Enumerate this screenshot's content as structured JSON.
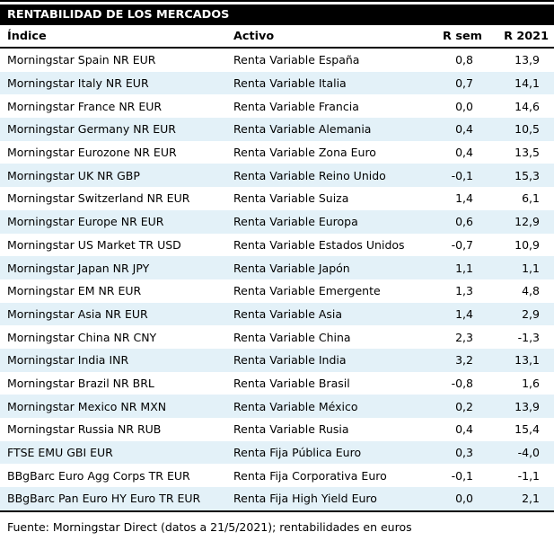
{
  "header": {
    "title": "RENTABILIDAD DE LOS MERCADOS"
  },
  "table": {
    "columns": [
      "Índice",
      "Activo",
      "R sem",
      "R 2021"
    ],
    "rows": [
      [
        "Morningstar Spain NR EUR",
        "Renta Variable España",
        "0,8",
        "13,9"
      ],
      [
        "Morningstar Italy NR EUR",
        "Renta Variable Italia",
        "0,7",
        "14,1"
      ],
      [
        "Morningstar France NR EUR",
        "Renta Variable Francia",
        "0,0",
        "14,6"
      ],
      [
        "Morningstar Germany NR EUR",
        "Renta Variable Alemania",
        "0,4",
        "10,5"
      ],
      [
        "Morningstar Eurozone NR EUR",
        "Renta Variable Zona Euro",
        "0,4",
        "13,5"
      ],
      [
        "Morningstar UK NR GBP",
        "Renta Variable Reino Unido",
        "-0,1",
        "15,3"
      ],
      [
        "Morningstar Switzerland NR EUR",
        "Renta Variable Suiza",
        "1,4",
        "6,1"
      ],
      [
        "Morningstar Europe NR EUR",
        "Renta Variable Europa",
        "0,6",
        "12,9"
      ],
      [
        "Morningstar US Market TR USD",
        "Renta Variable Estados Unidos",
        "-0,7",
        "10,9"
      ],
      [
        "Morningstar Japan NR JPY",
        "Renta Variable Japón",
        "1,1",
        "1,1"
      ],
      [
        "Morningstar EM NR EUR",
        "Renta Variable Emergente",
        "1,3",
        "4,8"
      ],
      [
        "Morningstar Asia NR EUR",
        "Renta Variable Asia",
        "1,4",
        "2,9"
      ],
      [
        "Morningstar China NR CNY",
        "Renta Variable China",
        "2,3",
        "-1,3"
      ],
      [
        "Morningstar India INR",
        "Renta Variable India",
        "3,2",
        "13,1"
      ],
      [
        "Morningstar Brazil NR BRL",
        "Renta Variable Brasil",
        "-0,8",
        "1,6"
      ],
      [
        "Morningstar Mexico NR MXN",
        "Renta Variable México",
        "0,2",
        "13,9"
      ],
      [
        "Morningstar Russia NR RUB",
        "Renta Variable Rusia",
        "0,4",
        "15,4"
      ],
      [
        "FTSE EMU GBI EUR",
        "Renta Fija Pública Euro",
        "0,3",
        "-4,0"
      ],
      [
        "BBgBarc Euro Agg Corps TR EUR",
        "Renta Fija Corporativa Euro",
        "-0,1",
        "-1,1"
      ],
      [
        "BBgBarc Pan Euro HY Euro TR EUR",
        "Renta Fija High Yield Euro",
        "0,0",
        "2,1"
      ]
    ]
  },
  "footer": {
    "source_note": "Fuente: Morningstar Direct (datos a 21/5/2021); rentabilidades en euros"
  },
  "colors": {
    "title_bar_bg": "#000000",
    "title_bar_text": "#ffffff",
    "alt_row_bg": "#e3f1f8",
    "text": "#000000",
    "rule": "#000000"
  }
}
